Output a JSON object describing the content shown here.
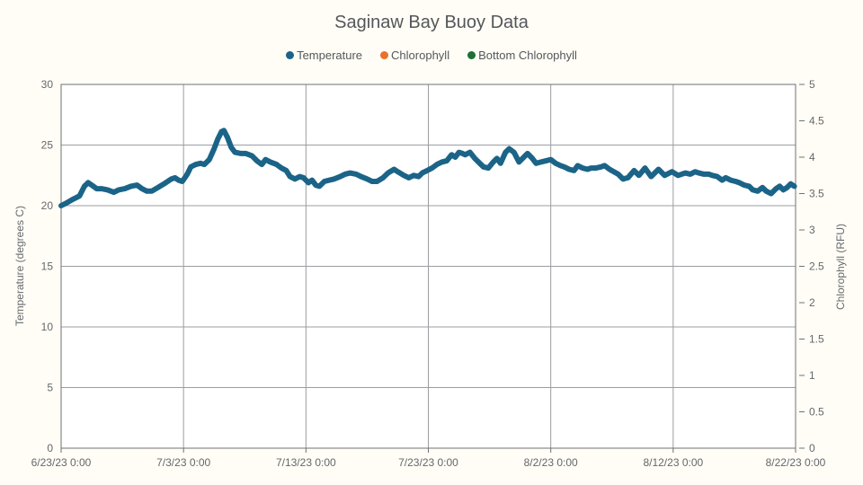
{
  "title": "Saginaw Bay Buoy Data",
  "colors": {
    "background": "#fffdf6",
    "plot_background": "#ffffff",
    "grid": "#9b9da1",
    "axis_border": "#6f7174",
    "tick_text": "#65676b",
    "title_text": "#54565a",
    "temperature_series": "#1b6488",
    "chlorophyll_series": "#e8722b",
    "bottom_chlorophyll_series": "#1e6f34"
  },
  "chart_data": {
    "type": "line",
    "title": "Saginaw Bay Buoy Data",
    "grid": true,
    "legend_position": "top-center",
    "x_unit": "days since 6/23/23 0:00",
    "x_range_days": [
      0,
      60
    ],
    "x_tick_labels": [
      "6/23/23 0:00",
      "7/3/23 0:00",
      "7/13/23 0:00",
      "7/23/23 0:00",
      "8/2/23 0:00",
      "8/12/23 0:00",
      "8/22/23 0:00"
    ],
    "left_axis": {
      "label": "Temperature (degrees C)",
      "range": [
        0,
        30
      ],
      "tick_step": 5,
      "tick_labels": [
        "0",
        "5",
        "10",
        "15",
        "20",
        "25",
        "30"
      ]
    },
    "right_axis": {
      "label": "Chlorophyll (RFU)",
      "range": [
        0,
        5
      ],
      "tick_step": 0.5,
      "tick_labels": [
        "0",
        "0.5",
        "1",
        "1.5",
        "2",
        "2.5",
        "3",
        "3.5",
        "4",
        "4.5",
        "5"
      ]
    },
    "series": [
      {
        "name": "Temperature",
        "yaxis": "left",
        "color": "#1b6488",
        "line_width": 6,
        "points": [
          [
            0,
            20.0
          ],
          [
            0.4,
            20.2
          ],
          [
            0.9,
            20.5
          ],
          [
            1.5,
            20.8
          ],
          [
            1.9,
            21.6
          ],
          [
            2.2,
            21.9
          ],
          [
            2.5,
            21.7
          ],
          [
            2.9,
            21.4
          ],
          [
            3.3,
            21.4
          ],
          [
            3.8,
            21.3
          ],
          [
            4.3,
            21.1
          ],
          [
            4.7,
            21.3
          ],
          [
            5.2,
            21.4
          ],
          [
            5.7,
            21.6
          ],
          [
            6.2,
            21.7
          ],
          [
            6.6,
            21.4
          ],
          [
            7.0,
            21.2
          ],
          [
            7.4,
            21.2
          ],
          [
            7.9,
            21.5
          ],
          [
            8.4,
            21.8
          ],
          [
            9.0,
            22.2
          ],
          [
            9.3,
            22.3
          ],
          [
            9.6,
            22.1
          ],
          [
            9.9,
            22.0
          ],
          [
            10.3,
            22.6
          ],
          [
            10.6,
            23.2
          ],
          [
            11.0,
            23.4
          ],
          [
            11.4,
            23.5
          ],
          [
            11.7,
            23.4
          ],
          [
            12.1,
            23.8
          ],
          [
            12.5,
            24.7
          ],
          [
            12.8,
            25.5
          ],
          [
            13.1,
            26.1
          ],
          [
            13.3,
            26.2
          ],
          [
            13.6,
            25.6
          ],
          [
            13.9,
            24.8
          ],
          [
            14.2,
            24.4
          ],
          [
            14.7,
            24.3
          ],
          [
            15.1,
            24.3
          ],
          [
            15.6,
            24.1
          ],
          [
            16.0,
            23.7
          ],
          [
            16.4,
            23.4
          ],
          [
            16.7,
            23.8
          ],
          [
            17.1,
            23.6
          ],
          [
            17.6,
            23.4
          ],
          [
            18.0,
            23.1
          ],
          [
            18.4,
            22.9
          ],
          [
            18.7,
            22.4
          ],
          [
            19.1,
            22.2
          ],
          [
            19.5,
            22.4
          ],
          [
            19.8,
            22.3
          ],
          [
            20.2,
            21.9
          ],
          [
            20.5,
            22.1
          ],
          [
            20.8,
            21.7
          ],
          [
            21.1,
            21.6
          ],
          [
            21.5,
            22.0
          ],
          [
            21.9,
            22.1
          ],
          [
            22.3,
            22.2
          ],
          [
            22.8,
            22.4
          ],
          [
            23.2,
            22.6
          ],
          [
            23.6,
            22.7
          ],
          [
            24.1,
            22.6
          ],
          [
            24.5,
            22.4
          ],
          [
            25.0,
            22.2
          ],
          [
            25.4,
            22.0
          ],
          [
            25.8,
            22.0
          ],
          [
            26.3,
            22.3
          ],
          [
            26.7,
            22.7
          ],
          [
            27.2,
            23.0
          ],
          [
            27.5,
            22.8
          ],
          [
            28.0,
            22.5
          ],
          [
            28.4,
            22.3
          ],
          [
            28.8,
            22.5
          ],
          [
            29.2,
            22.4
          ],
          [
            29.5,
            22.7
          ],
          [
            29.9,
            22.9
          ],
          [
            30.3,
            23.1
          ],
          [
            30.7,
            23.4
          ],
          [
            31.1,
            23.6
          ],
          [
            31.5,
            23.7
          ],
          [
            31.9,
            24.2
          ],
          [
            32.2,
            24.0
          ],
          [
            32.5,
            24.4
          ],
          [
            32.8,
            24.3
          ],
          [
            33.0,
            24.2
          ],
          [
            33.4,
            24.4
          ],
          [
            33.8,
            23.9
          ],
          [
            34.2,
            23.5
          ],
          [
            34.5,
            23.2
          ],
          [
            34.9,
            23.1
          ],
          [
            35.3,
            23.6
          ],
          [
            35.6,
            23.9
          ],
          [
            35.9,
            23.5
          ],
          [
            36.3,
            24.4
          ],
          [
            36.6,
            24.7
          ],
          [
            37.0,
            24.4
          ],
          [
            37.4,
            23.6
          ],
          [
            37.7,
            23.9
          ],
          [
            38.1,
            24.3
          ],
          [
            38.5,
            23.9
          ],
          [
            38.8,
            23.5
          ],
          [
            39.2,
            23.6
          ],
          [
            39.6,
            23.7
          ],
          [
            40.0,
            23.8
          ],
          [
            40.4,
            23.5
          ],
          [
            40.8,
            23.3
          ],
          [
            41.1,
            23.2
          ],
          [
            41.5,
            23.0
          ],
          [
            41.9,
            22.9
          ],
          [
            42.2,
            23.3
          ],
          [
            42.6,
            23.1
          ],
          [
            43.0,
            23.0
          ],
          [
            43.3,
            23.1
          ],
          [
            43.7,
            23.1
          ],
          [
            44.1,
            23.2
          ],
          [
            44.4,
            23.3
          ],
          [
            44.8,
            23.0
          ],
          [
            45.5,
            22.6
          ],
          [
            45.9,
            22.2
          ],
          [
            46.3,
            22.3
          ],
          [
            46.8,
            22.9
          ],
          [
            47.2,
            22.5
          ],
          [
            47.7,
            23.1
          ],
          [
            48.2,
            22.4
          ],
          [
            48.8,
            23.0
          ],
          [
            49.3,
            22.5
          ],
          [
            49.9,
            22.8
          ],
          [
            50.4,
            22.5
          ],
          [
            51.0,
            22.7
          ],
          [
            51.4,
            22.6
          ],
          [
            51.8,
            22.8
          ],
          [
            52.1,
            22.7
          ],
          [
            52.5,
            22.6
          ],
          [
            52.9,
            22.6
          ],
          [
            53.2,
            22.5
          ],
          [
            53.6,
            22.4
          ],
          [
            54.0,
            22.1
          ],
          [
            54.3,
            22.3
          ],
          [
            54.7,
            22.1
          ],
          [
            55.1,
            22.0
          ],
          [
            55.4,
            21.9
          ],
          [
            55.8,
            21.7
          ],
          [
            56.2,
            21.6
          ],
          [
            56.5,
            21.3
          ],
          [
            56.9,
            21.2
          ],
          [
            57.3,
            21.5
          ],
          [
            57.6,
            21.2
          ],
          [
            58.0,
            21.0
          ],
          [
            58.4,
            21.4
          ],
          [
            58.7,
            21.6
          ],
          [
            59.0,
            21.3
          ],
          [
            59.3,
            21.5
          ],
          [
            59.6,
            21.8
          ],
          [
            59.9,
            21.6
          ]
        ]
      },
      {
        "name": "Chlorophyll",
        "yaxis": "right",
        "color": "#e8722b",
        "line_width": 6,
        "points": []
      },
      {
        "name": "Bottom Chlorophyll",
        "yaxis": "right",
        "color": "#1e6f34",
        "line_width": 6,
        "points": []
      }
    ]
  }
}
